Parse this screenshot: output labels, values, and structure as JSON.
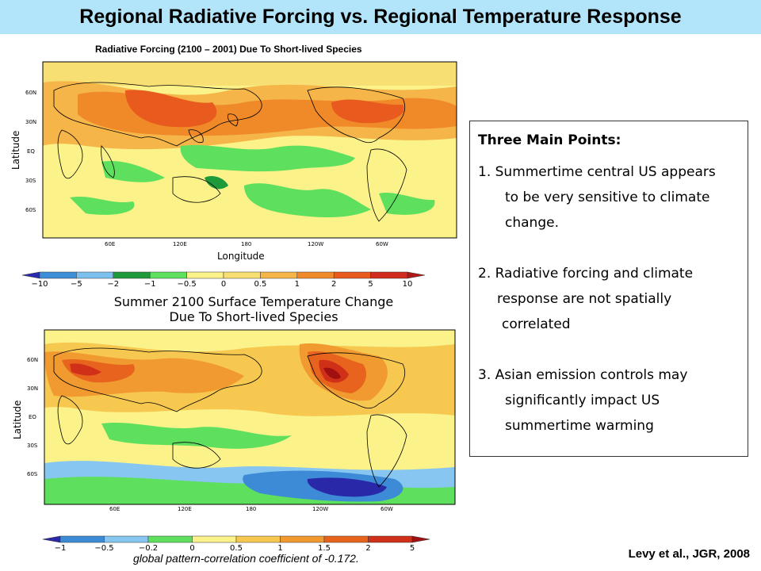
{
  "slide": {
    "title": "Regional Radiative Forcing vs. Regional Temperature Response",
    "credit": "Levy et al., JGR, 2008",
    "correlation_note": "global pattern-correlation coefficient of -0.172."
  },
  "map1": {
    "title": "Radiative Forcing (2100 – 2001) Due To Short-lived Species",
    "xlabel": "Longitude",
    "ylabel": "Latitude",
    "lat_ticks": [
      "60N",
      "30N",
      "EQ",
      "30S",
      "60S"
    ],
    "lon_ticks": [
      "60E",
      "120E",
      "180",
      "120W",
      "60W"
    ],
    "colorbar": {
      "labels": [
        "−10",
        "−5",
        "−2",
        "−1",
        "−0.5",
        "0",
        "0.5",
        "1",
        "2",
        "5",
        "10"
      ],
      "colors": [
        "#2a2ab0",
        "#3f8fd8",
        "#7cc0ee",
        "#1f9a3a",
        "#5ee05e",
        "#fbf28a",
        "#f7df73",
        "#f5b548",
        "#f08a28",
        "#e85a1e",
        "#d12a1e",
        "#b01818"
      ]
    }
  },
  "map2": {
    "title_line1": "Summer 2100 Surface Temperature Change",
    "title_line2": "Due To Short-lived Species",
    "ylabel": "Latitude",
    "lat_ticks": [
      "60N",
      "30N",
      "EO",
      "30S",
      "60S"
    ],
    "lon_ticks": [
      "60E",
      "120E",
      "180",
      "120W",
      "60W"
    ],
    "colorbar": {
      "labels": [
        "−1",
        "−0.5",
        "−0.2",
        "0",
        "0.5",
        "1",
        "1.5",
        "2",
        "5"
      ],
      "colors": [
        "#2828a8",
        "#3d8ad6",
        "#86c6f0",
        "#5ee05e",
        "#fbf28a",
        "#f7c850",
        "#f09a30",
        "#e8641e",
        "#d03018",
        "#a01010"
      ]
    }
  },
  "points": {
    "heading": "Three Main Points:",
    "p1": [
      "1. Summertime central US appears",
      "to be very sensitive to climate",
      "change."
    ],
    "p2": [
      "2. Radiative forcing and climate",
      "response are not spatially",
      "correlated"
    ],
    "p3": [
      "3. Asian emission controls may",
      "significantly impact US",
      "summertime warming"
    ]
  }
}
